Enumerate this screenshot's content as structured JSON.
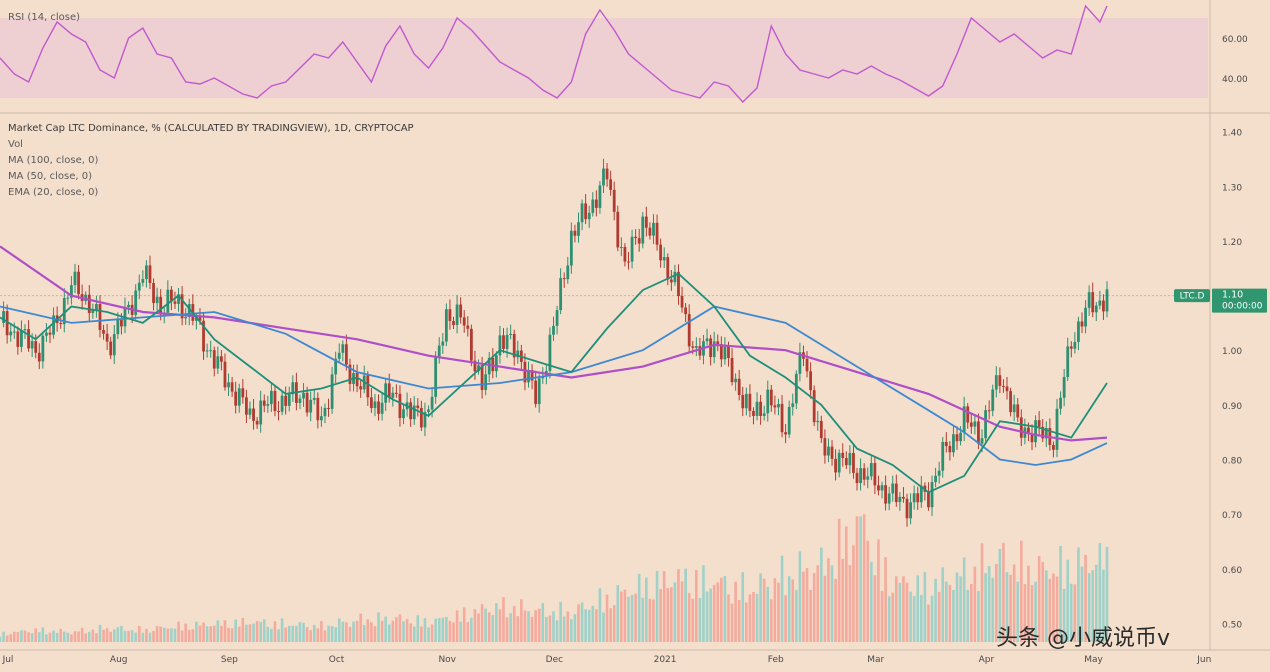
{
  "rsi_pane": {
    "label": "RSI (14, close)",
    "ticks": [
      "60.00",
      "40.00"
    ],
    "tick_values": [
      60,
      40
    ],
    "band": [
      30,
      70
    ],
    "ylim": [
      24,
      76
    ]
  },
  "main_pane": {
    "legend": [
      "Market Cap LTC Dominance, % (CALCULATED BY TRADINGVIEW), 1D, CRYPTOCAP",
      "Vol",
      "MA (100, close, 0)",
      "MA (50, close, 0)",
      "EMA (20, close, 0)"
    ],
    "ticks": [
      "1.40",
      "1.30",
      "1.20",
      "1.10",
      "1.00",
      "0.90",
      "0.80",
      "0.70",
      "0.60",
      "0.50"
    ],
    "tick_values": [
      1.4,
      1.3,
      1.2,
      1.1,
      1.0,
      0.9,
      0.8,
      0.7,
      0.6,
      0.5
    ],
    "price_tag": "LTC.D",
    "price_tag_value": "1.10",
    "price_tag_sub": "00:00:00",
    "ylim": [
      0.455,
      1.425
    ]
  },
  "x_axis": {
    "labels": [
      "Jul",
      "Aug",
      "Sep",
      "Oct",
      "Nov",
      "Dec",
      "2021",
      "Feb",
      "Mar",
      "Apr",
      "May",
      "Jun"
    ],
    "day_index": [
      0,
      31,
      62,
      92,
      123,
      153,
      184,
      215,
      243,
      274,
      304,
      335
    ]
  },
  "watermark": "头条 @小威说币v",
  "colors": {
    "background": "#f4dfcd",
    "rsi_band": "#eecfd2",
    "rsi_line": "#c159cf",
    "up_candle": "#2f8f71",
    "down_candle": "#b13b30",
    "ma100": "#b04ec8",
    "ma50": "#3d88d0",
    "ema20": "#1f8f7a",
    "vol_up": "#8fcfc7",
    "vol_down": "#f3a193",
    "price_tag": "#2f9670"
  },
  "chart_data": [
    {
      "type": "line",
      "name": "RSI (14, close)",
      "x_unit": "days since Jul 1 2020",
      "x": [
        0,
        4,
        8,
        12,
        16,
        20,
        24,
        28,
        32,
        36,
        40,
        44,
        48,
        52,
        56,
        60,
        64,
        68,
        72,
        76,
        80,
        84,
        88,
        92,
        96,
        100,
        104,
        108,
        112,
        116,
        120,
        124,
        128,
        132,
        136,
        140,
        144,
        148,
        152,
        156,
        160,
        164,
        168,
        172,
        176,
        180,
        184,
        188,
        192,
        196,
        200,
        204,
        208,
        212,
        216,
        220,
        224,
        228,
        232,
        236,
        240,
        244,
        248,
        252,
        256,
        260,
        264,
        268,
        272,
        276,
        280,
        284,
        288,
        292,
        296,
        300,
        304,
        308,
        310
      ],
      "y": [
        50,
        42,
        38,
        55,
        68,
        62,
        58,
        44,
        40,
        60,
        65,
        52,
        50,
        38,
        37,
        40,
        36,
        32,
        30,
        36,
        38,
        45,
        52,
        50,
        58,
        48,
        38,
        56,
        66,
        52,
        45,
        55,
        70,
        64,
        56,
        48,
        44,
        40,
        34,
        30,
        38,
        62,
        74,
        64,
        52,
        46,
        40,
        34,
        32,
        30,
        38,
        36,
        28,
        35,
        66,
        52,
        44,
        42,
        40,
        44,
        42,
        46,
        42,
        39,
        35,
        31,
        36,
        52,
        70,
        64,
        58,
        62,
        56,
        50,
        54,
        52,
        76,
        68,
        76
      ]
    },
    {
      "type": "line",
      "name": "MA (100, close, 0)",
      "x": [
        0,
        20,
        40,
        60,
        80,
        100,
        120,
        140,
        160,
        180,
        200,
        220,
        240,
        260,
        270,
        280,
        290,
        300,
        310
      ],
      "y": [
        1.19,
        1.1,
        1.07,
        1.06,
        1.04,
        1.02,
        0.99,
        0.97,
        0.95,
        0.97,
        1.01,
        1.0,
        0.96,
        0.92,
        0.89,
        0.86,
        0.845,
        0.835,
        0.84
      ]
    },
    {
      "type": "line",
      "name": "MA (50, close, 0)",
      "x": [
        0,
        20,
        40,
        60,
        80,
        100,
        120,
        140,
        160,
        180,
        200,
        220,
        240,
        260,
        270,
        280,
        290,
        300,
        310
      ],
      "y": [
        1.08,
        1.05,
        1.06,
        1.07,
        1.03,
        0.96,
        0.93,
        0.94,
        0.96,
        1.0,
        1.08,
        1.05,
        0.97,
        0.89,
        0.85,
        0.8,
        0.79,
        0.8,
        0.83
      ]
    },
    {
      "type": "line",
      "name": "EMA (20, close, 0)",
      "x": [
        0,
        10,
        20,
        30,
        40,
        50,
        60,
        70,
        80,
        90,
        100,
        110,
        120,
        130,
        140,
        150,
        160,
        170,
        180,
        190,
        200,
        210,
        220,
        230,
        240,
        250,
        260,
        270,
        280,
        290,
        300,
        310
      ],
      "y": [
        1.06,
        1.02,
        1.08,
        1.07,
        1.05,
        1.1,
        1.02,
        0.97,
        0.92,
        0.93,
        0.95,
        0.91,
        0.88,
        0.94,
        1.0,
        0.98,
        0.96,
        1.04,
        1.11,
        1.14,
        1.08,
        0.99,
        0.95,
        0.9,
        0.82,
        0.79,
        0.74,
        0.77,
        0.87,
        0.86,
        0.84,
        0.94
      ]
    },
    {
      "type": "line",
      "name": "Market Cap LTC Dominance, % (close)",
      "x": [
        0,
        5,
        10,
        15,
        20,
        25,
        30,
        35,
        40,
        45,
        50,
        55,
        60,
        65,
        70,
        75,
        80,
        85,
        90,
        95,
        100,
        105,
        110,
        115,
        120,
        125,
        130,
        135,
        140,
        145,
        150,
        155,
        160,
        165,
        170,
        175,
        180,
        185,
        190,
        195,
        200,
        205,
        210,
        215,
        220,
        225,
        230,
        235,
        240,
        245,
        250,
        255,
        260,
        265,
        270,
        275,
        280,
        285,
        290,
        295,
        300,
        305,
        308,
        310
      ],
      "y": [
        1.05,
        1.03,
        1.0,
        1.04,
        1.12,
        1.09,
        1.01,
        1.06,
        1.14,
        1.08,
        1.09,
        1.05,
        0.98,
        0.93,
        0.88,
        0.9,
        0.91,
        0.92,
        0.87,
        1.0,
        0.94,
        0.9,
        0.92,
        0.88,
        0.89,
        1.07,
        1.05,
        0.93,
        1.02,
        1.0,
        0.91,
        1.04,
        1.21,
        1.26,
        1.32,
        1.15,
        1.24,
        1.18,
        1.1,
        0.99,
        1.02,
        0.96,
        0.88,
        0.91,
        0.86,
        1.0,
        0.82,
        0.8,
        0.78,
        0.76,
        0.73,
        0.72,
        0.74,
        0.82,
        0.87,
        0.85,
        0.96,
        0.86,
        0.85,
        0.84,
        1.02,
        1.08,
        1.09,
        1.1
      ]
    },
    {
      "type": "bar",
      "name": "Vol",
      "x": [
        0,
        10,
        20,
        30,
        40,
        50,
        60,
        70,
        80,
        90,
        100,
        110,
        120,
        130,
        140,
        150,
        160,
        170,
        180,
        190,
        200,
        210,
        220,
        230,
        240,
        250,
        260,
        270,
        280,
        290,
        300,
        310
      ],
      "y": [
        4,
        6,
        5,
        7,
        6,
        8,
        9,
        10,
        9,
        8,
        11,
        12,
        10,
        14,
        18,
        16,
        15,
        22,
        28,
        32,
        30,
        26,
        34,
        38,
        58,
        30,
        28,
        34,
        42,
        36,
        38,
        42
      ]
    }
  ]
}
